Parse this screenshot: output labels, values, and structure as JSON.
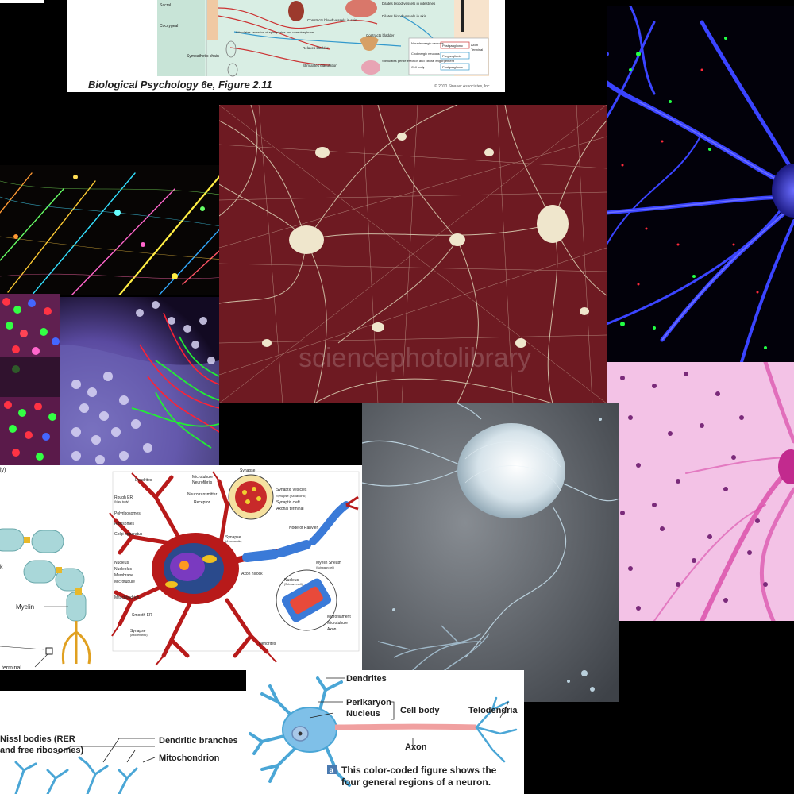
{
  "figure_2_11": {
    "caption": "Biological Psychology 6e, Figure 2.11",
    "copyright": "© 2010 Sinauer Associates, Inc.",
    "labels": {
      "sacral": "Sacral",
      "coccygeal": "Coccygeal",
      "sympathetic_chain": "Sympathetic chain",
      "stim_secretion": "Stimulates secretion of epinephrine and norepinephrine",
      "constricts_blood": "Constricts blood vessels in skin",
      "dilates_blood_intestines": "Dilates blood vessels in intestines",
      "dilates_blood_skin": "Dilates blood vessels in skin",
      "relaxes_bladder": "Relaxes bladder",
      "contracts_bladder": "Contracts bladder",
      "stim_ejaculation": "Stimulates ejaculation",
      "stim_erection": "Stimulates penile erection and clitoral engorgement",
      "legend_noradrenergic": "Noradrenergic neurons",
      "legend_cholinergic": "Cholinergic neurons",
      "legend_postganglionic_1": "Postganglionic",
      "legend_preganglionic": "Preganglionic",
      "legend_postganglionic_2": "Postganglionic",
      "legend_axon": "Axon",
      "legend_terminal": "Terminal",
      "legend_cell_body": "Cell body"
    }
  },
  "neuron_anatomy_diagram": {
    "labels": {
      "dendrites_top": "Dendrites",
      "rough_er": "Rough ER",
      "rough_er_sub": "(Nissl body)",
      "polyribosomes": "Polyribosomes",
      "ribosomes": "Ribosomes",
      "golgi": "Golgi apparatus",
      "nucleus": "Nucleus",
      "nucleolus": "Nucleolus",
      "membrane": "Membrane",
      "microtubule": "Microtubule",
      "mitochondrion": "Mitochondrion",
      "smooth_er": "Smooth ER",
      "synapse_axodendritic": "Synapse",
      "synapse_axodendritic_sub": "(Axodendritic)",
      "dendrites_bottom": "Dendrites",
      "microtubule_top": "Microtubule",
      "neurofibrils": "Neurofibrils",
      "neurotransmitter": "Neurotransmitter",
      "receptor": "Receptor",
      "synapse": "Synapse",
      "synaptic_vesicles": "Synaptic vesicles",
      "synapse_axoaxonic": "Synapse (Axoaxonic)",
      "synaptic_cleft": "Synaptic cleft",
      "axonal_terminal": "Axonal terminal",
      "node_ranvier": "Node of Ranvier",
      "synapse_axosomatic": "Synapse",
      "synapse_axosomatic_sub": "(Axosomatic)",
      "axon_hillock": "Axon hillock",
      "myelin_sheath": "Myelin Sheath",
      "schwann_cell": "(Schwann cell)",
      "nucleus_schwann": "Nucleus",
      "nucleus_schwann_sub": "(Schwann cell)",
      "microfilament": "Microfilament",
      "microtubule_axon": "Microtubule",
      "axon": "Axon"
    }
  },
  "myelin_diagram": {
    "labels": {
      "partial_top": "ly)",
      "partial_k": "k",
      "myelin": "Myelin",
      "terminal": "terminal"
    }
  },
  "regions_diagram": {
    "labels": {
      "dendrites": "Dendrites",
      "perikaryon": "Perikaryon",
      "nucleus": "Nucleus",
      "cell_body": "Cell body",
      "telodendria": "Telodendria",
      "axon": "Axon",
      "figure_marker": "a",
      "caption_line1": "This color-coded figure shows the",
      "caption_line2": "four general regions of a neuron."
    }
  },
  "nissl_diagram": {
    "labels": {
      "nissl_line1": "Nissl bodies (RER",
      "nissl_line2": "and free ribosomes)",
      "dendritic_branches": "Dendritic branches",
      "mitochondrion": "Mitochondrion"
    }
  },
  "sem_network": {
    "watermark": "sciencephotolibrary"
  }
}
